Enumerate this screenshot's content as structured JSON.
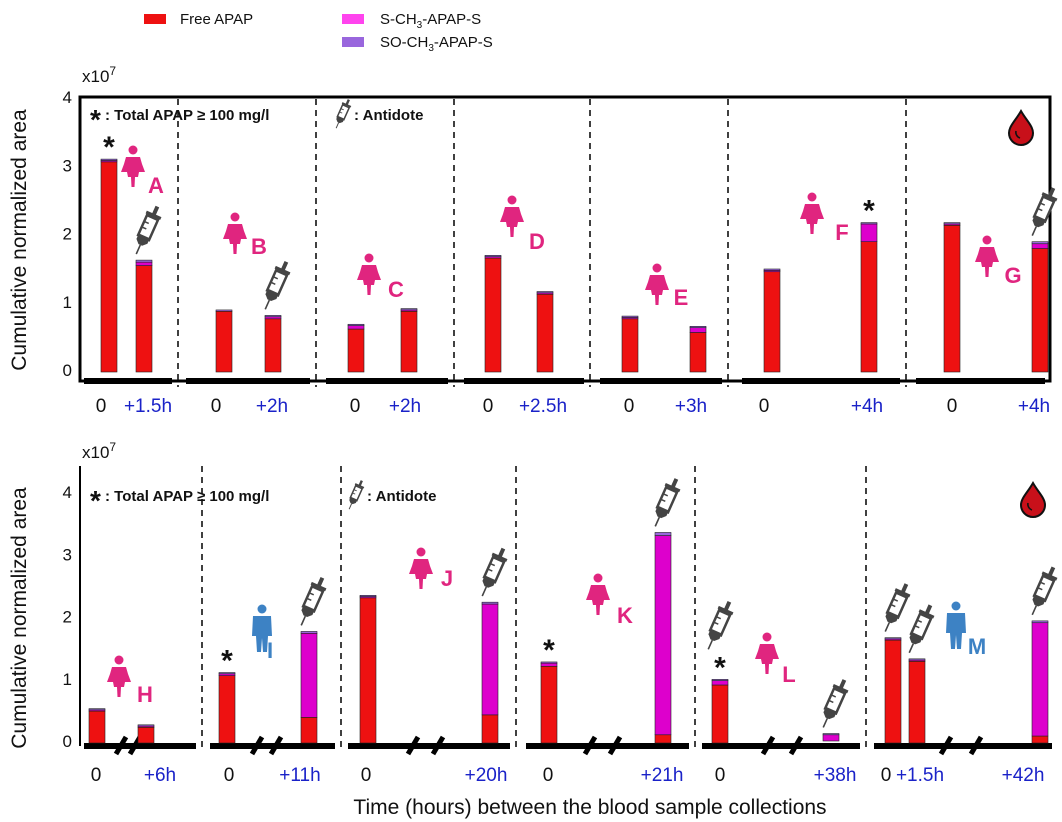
{
  "legend": [
    {
      "name": "Free APAP",
      "color": "#ee1111"
    },
    {
      "name": "S-CH3-APAP-S",
      "color": "#ff44ee"
    },
    {
      "name": "SO-CH3-APAP-S",
      "color": "#9966dd"
    }
  ],
  "colors": {
    "free": "#ee1111",
    "s": "#dd00cc",
    "so": "#9966dd",
    "female": "#e0257f",
    "male": "#3d82c4",
    "blood": "#c8101a",
    "syringe": "#444444",
    "time0": "#111111",
    "timeN": "#1a22c8"
  },
  "shared": {
    "y_label": "Cumulative normalized area",
    "scale_label": "x10",
    "scale_exp": "7",
    "x_label": "Time (hours) between the blood sample collections",
    "star_note": ": Total APAP ≥ 100 mg/l",
    "antidote_note": ": Antidote",
    "star_symbol": "*"
  },
  "chart_data": [
    {
      "type": "bar",
      "stacked": true,
      "y_ticks": [
        "0",
        "1",
        "2",
        "3",
        "4"
      ],
      "ylim": [
        0,
        4
      ],
      "patients": [
        {
          "letter": "A",
          "sex": "female",
          "times": [
            "0",
            "+1.5h"
          ],
          "bars": [
            {
              "free": 3.05,
              "s": 0.02,
              "so": 0.02,
              "star": true
            },
            {
              "free": 1.53,
              "s": 0.05,
              "so": 0.03,
              "antidote": true
            }
          ]
        },
        {
          "letter": "B",
          "sex": "female",
          "times": [
            "0",
            "+2h"
          ],
          "bars": [
            {
              "free": 0.86,
              "s": 0.0,
              "so": 0.02
            },
            {
              "free": 0.75,
              "s": 0.03,
              "so": 0.02,
              "antidote": true
            }
          ]
        },
        {
          "letter": "C",
          "sex": "female",
          "times": [
            "0",
            "+2h"
          ],
          "bars": [
            {
              "free": 0.6,
              "s": 0.05,
              "so": 0.02
            },
            {
              "free": 0.86,
              "s": 0.02,
              "so": 0.02
            }
          ]
        },
        {
          "letter": "D",
          "sex": "female",
          "times": [
            "0",
            "+2.5h"
          ],
          "bars": [
            {
              "free": 1.64,
              "s": 0.02,
              "so": 0.02
            },
            {
              "free": 1.11,
              "s": 0.02,
              "so": 0.02
            }
          ]
        },
        {
          "letter": "E",
          "sex": "female",
          "times": [
            "0",
            "+3h"
          ],
          "bars": [
            {
              "free": 0.75,
              "s": 0.02,
              "so": 0.02
            },
            {
              "free": 0.55,
              "s": 0.07,
              "so": 0.02
            }
          ]
        },
        {
          "letter": "F",
          "sex": "female",
          "times": [
            "0",
            "+4h"
          ],
          "bars": [
            {
              "free": 1.44,
              "s": 0.02,
              "so": 0.02
            },
            {
              "free": 1.88,
              "s": 0.26,
              "so": 0.02,
              "star": true
            }
          ]
        },
        {
          "letter": "G",
          "sex": "female",
          "times": [
            "0",
            "+4h"
          ],
          "bars": [
            {
              "free": 2.12,
              "s": 0.02,
              "so": 0.02
            },
            {
              "free": 1.78,
              "s": 0.07,
              "so": 0.03,
              "antidote": true
            }
          ]
        }
      ]
    },
    {
      "type": "bar",
      "stacked": true,
      "y_ticks": [
        "0",
        "1",
        "2",
        "3",
        "4"
      ],
      "ylim": [
        0,
        4
      ],
      "patients": [
        {
          "letter": "H",
          "sex": "female",
          "times": [
            "0",
            "+6h"
          ],
          "bars": [
            {
              "free": 0.48,
              "s": 0.02,
              "so": 0.02
            },
            {
              "free": 0.22,
              "s": 0.02,
              "so": 0.02
            }
          ]
        },
        {
          "letter": "I",
          "sex": "male",
          "times": [
            "0",
            "+11h"
          ],
          "bars": [
            {
              "free": 1.05,
              "s": 0.03,
              "so": 0.02,
              "star": true
            },
            {
              "free": 0.38,
              "s": 1.35,
              "so": 0.03,
              "antidote": true
            }
          ]
        },
        {
          "letter": "J",
          "sex": "female",
          "times": [
            "0",
            "+20h"
          ],
          "bars": [
            {
              "free": 2.3,
              "s": 0.02,
              "so": 0.02
            },
            {
              "free": 0.42,
              "s": 1.78,
              "so": 0.03,
              "antidote": true
            }
          ]
        },
        {
          "letter": "K",
          "sex": "female",
          "times": [
            "0",
            "+21h"
          ],
          "bars": [
            {
              "free": 1.2,
              "s": 0.05,
              "so": 0.02,
              "star": true
            },
            {
              "free": 0.1,
              "s": 3.2,
              "so": 0.05,
              "antidote": true
            }
          ]
        },
        {
          "letter": "L",
          "sex": "female",
          "times": [
            "0",
            "+38h"
          ],
          "bars": [
            {
              "free": 0.9,
              "s": 0.07,
              "so": 0.02,
              "star": true,
              "antidote": true
            },
            {
              "free": 0.0,
              "s": 0.1,
              "so": 0.02,
              "antidote": true
            }
          ]
        },
        {
          "letter": "M",
          "sex": "male",
          "times": [
            "0",
            "+1.5h",
            "+42h"
          ],
          "bars": [
            {
              "free": 1.62,
              "s": 0.02,
              "so": 0.02,
              "antidote": true
            },
            {
              "free": 1.28,
              "s": 0.02,
              "so": 0.02,
              "antidote": true
            },
            {
              "free": 0.08,
              "s": 1.82,
              "so": 0.03,
              "antidote": true
            }
          ]
        }
      ]
    }
  ]
}
